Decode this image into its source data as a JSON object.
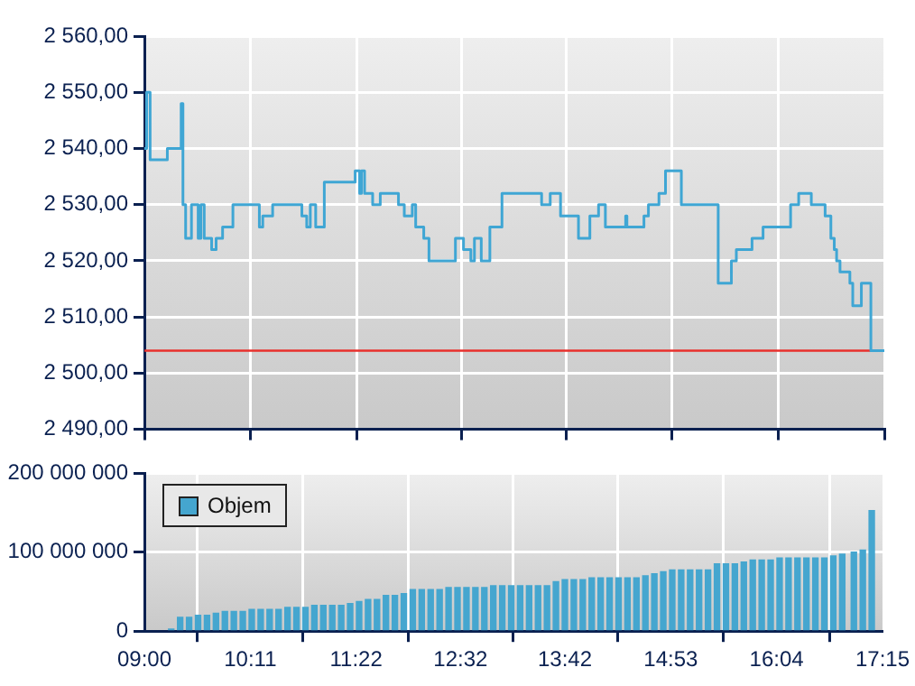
{
  "chart_data": [
    {
      "type": "step",
      "color": "#3fa6d4",
      "tick_labels": "y",
      "grid": true,
      "x": [
        9.0,
        9.025,
        9.064,
        9.256,
        9.41,
        9.43,
        9.46,
        9.525,
        9.6,
        9.63,
        9.667,
        9.75,
        9.8,
        9.872,
        9.987,
        10.282,
        10.32,
        10.43,
        10.756,
        10.81,
        10.85,
        10.91,
        11.006,
        11.35,
        11.4,
        11.42,
        11.455,
        11.545,
        11.63,
        11.833,
        11.898,
        11.987,
        12.025,
        12.115,
        12.173,
        12.468,
        12.558,
        12.64,
        12.68,
        12.756,
        12.852,
        12.987,
        13.429,
        13.525,
        13.64,
        13.84,
        13.967,
        14.064,
        14.14,
        14.366,
        14.38,
        14.57,
        14.62,
        14.737,
        14.81,
        14.987,
        15.398,
        15.545,
        15.6,
        15.775,
        15.898,
        16.205,
        16.295,
        16.436,
        16.59,
        16.654,
        16.692,
        16.718,
        16.756,
        16.866,
        16.898,
        16.994,
        17.1,
        17.25
      ],
      "values": [
        2540,
        2550,
        2538,
        2540,
        2548,
        2530,
        2524,
        2530,
        2524,
        2530,
        2524,
        2522,
        2524,
        2526,
        2530,
        2526,
        2528,
        2530,
        2528,
        2526,
        2530,
        2526,
        2534,
        2536,
        2532,
        2536,
        2532,
        2530,
        2532,
        2530,
        2528,
        2530,
        2526,
        2524,
        2520,
        2524,
        2522,
        2520,
        2524,
        2520,
        2526,
        2532,
        2530,
        2532,
        2528,
        2524,
        2528,
        2530,
        2526,
        2528,
        2526,
        2528,
        2530,
        2532,
        2536,
        2530,
        2516,
        2520,
        2522,
        2524,
        2526,
        2530,
        2532,
        2530,
        2528,
        2524,
        2522,
        2520,
        2518,
        2516,
        2512,
        2516,
        2504,
        2504
      ],
      "xlim": [
        9,
        17.25
      ],
      "xticks": [
        {
          "value": 9,
          "label": null
        },
        {
          "value": 10.1833,
          "label": null
        },
        {
          "value": 11.3667,
          "label": null
        },
        {
          "value": 12.5333,
          "label": null
        },
        {
          "value": 13.7,
          "label": null
        },
        {
          "value": 14.8833,
          "label": null
        },
        {
          "value": 16.0667,
          "label": null
        },
        {
          "value": 17.25,
          "label": null
        }
      ],
      "ylim": [
        2490,
        2560
      ],
      "yticks": [
        {
          "value": 2490,
          "label": "2 490,00"
        },
        {
          "value": 2500,
          "label": "2 500,00"
        },
        {
          "value": 2510,
          "label": "2 510,00"
        },
        {
          "value": 2520,
          "label": "2 520,00"
        },
        {
          "value": 2530,
          "label": "2 530,00"
        },
        {
          "value": 2540,
          "label": "2 540,00"
        },
        {
          "value": 2550,
          "label": "2 550,00"
        },
        {
          "value": 2560,
          "label": "2 560,00"
        }
      ],
      "ref_lines": [
        {
          "axis": "y",
          "value": 2504,
          "color": "#e8302c"
        }
      ]
    },
    {
      "type": "bar",
      "grid": true,
      "legend": "top left",
      "x": [
        9.3,
        9.4,
        9.5,
        9.6,
        9.7,
        9.8,
        9.9,
        10.0,
        10.1,
        10.2,
        10.3,
        10.4,
        10.5,
        10.6,
        10.7,
        10.8,
        10.9,
        11.0,
        11.1,
        11.2,
        11.3,
        11.4,
        11.5,
        11.6,
        11.7,
        11.8,
        11.9,
        12.0,
        12.1,
        12.2,
        12.3,
        12.4,
        12.5,
        12.6,
        12.7,
        12.8,
        12.9,
        13.0,
        13.1,
        13.2,
        13.3,
        13.4,
        13.5,
        13.6,
        13.7,
        13.8,
        13.9,
        14.0,
        14.1,
        14.2,
        14.3,
        14.4,
        14.5,
        14.6,
        14.7,
        14.8,
        14.9,
        15.0,
        15.1,
        15.2,
        15.3,
        15.4,
        15.5,
        15.6,
        15.7,
        15.8,
        15.9,
        16.0,
        16.1,
        16.2,
        16.3,
        16.4,
        16.5,
        16.6,
        16.7,
        16.8,
        16.93,
        17.03,
        17.13
      ],
      "series": [
        {
          "name": "Objem",
          "color": "#45a6cf",
          "values": [
            2500000,
            17500000,
            17500000,
            20000000,
            20000000,
            22500000,
            25000000,
            25000000,
            25000000,
            27500000,
            27500000,
            27500000,
            27500000,
            30000000,
            30000000,
            30000000,
            32500000,
            32500000,
            32500000,
            32500000,
            35000000,
            37500000,
            40000000,
            40000000,
            45000000,
            45000000,
            47500000,
            52500000,
            52500000,
            52500000,
            52500000,
            55000000,
            55000000,
            55000000,
            55000000,
            55000000,
            57500000,
            57500000,
            57500000,
            57500000,
            57500000,
            57500000,
            57500000,
            62500000,
            65000000,
            65000000,
            65000000,
            67500000,
            67500000,
            67500000,
            67500000,
            67500000,
            67500000,
            70000000,
            72500000,
            75000000,
            77500000,
            77500000,
            77500000,
            77500000,
            77500000,
            85000000,
            85000000,
            85000000,
            87500000,
            90000000,
            90000000,
            90000000,
            92500000,
            92500000,
            92500000,
            92500000,
            92500000,
            92500000,
            95000000,
            97500000,
            100000000,
            102500000,
            152500000
          ]
        }
      ],
      "xlim": [
        9,
        17.25
      ],
      "xticks": [
        {
          "value": 9,
          "label": "09:00"
        },
        {
          "value": 10.1833,
          "label": "10:11"
        },
        {
          "value": 11.3667,
          "label": "11:22"
        },
        {
          "value": 12.5333,
          "label": "12:32"
        },
        {
          "value": 13.7,
          "label": "13:42"
        },
        {
          "value": 14.8833,
          "label": "14:53"
        },
        {
          "value": 16.0667,
          "label": "16:04"
        },
        {
          "value": 17.25,
          "label": "17:15"
        }
      ],
      "ylim": [
        0,
        200000000
      ],
      "yticks": [
        0,
        {
          "value": 100000000,
          "label": "100 000 000"
        },
        {
          "value": 200000000,
          "label": "200 000 000"
        }
      ]
    }
  ]
}
